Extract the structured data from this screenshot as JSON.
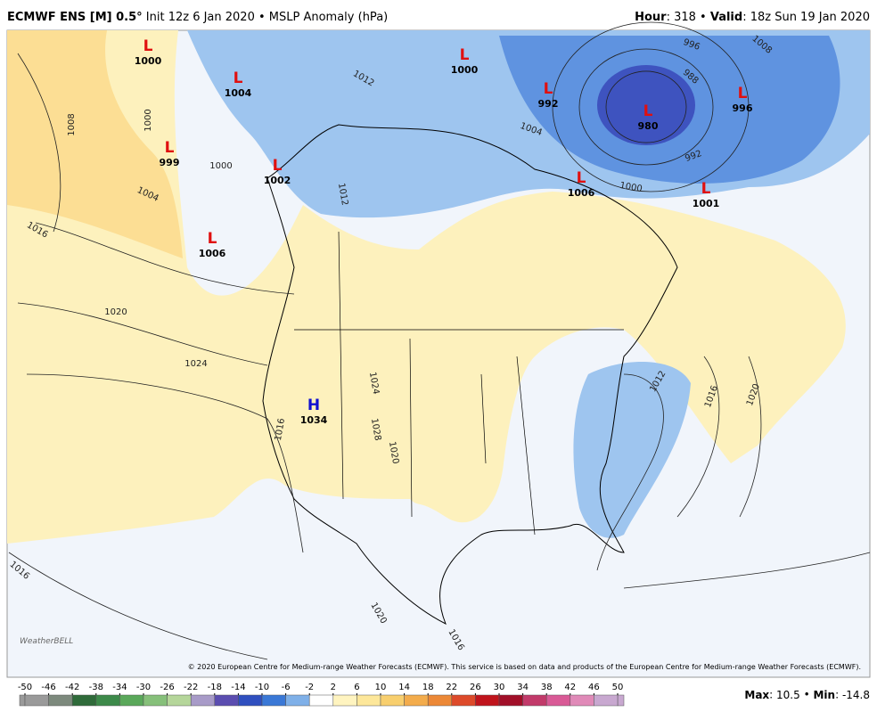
{
  "header": {
    "model": "ECMWF ENS [M] 0.5°",
    "subtitle": "Init 12z 6 Jan 2020 • MSLP Anomaly (hPa)",
    "hour_label": "Hour",
    "hour_text": ": 318 •",
    "valid_label": "Valid",
    "valid_text": ": 18z Sun 19 Jan 2020"
  },
  "centers": [
    {
      "label": "L",
      "value": 1000
    },
    {
      "label": "L",
      "value": 1004
    },
    {
      "label": "L",
      "value": 999
    },
    {
      "label": "L",
      "value": 1002
    },
    {
      "label": "L",
      "value": 1006
    },
    {
      "label": "L",
      "value": 1000
    },
    {
      "label": "H",
      "value": 1034
    },
    {
      "label": "L",
      "value": 992
    },
    {
      "label": "L",
      "value": 980
    },
    {
      "label": "L",
      "value": 996
    },
    {
      "label": "L",
      "value": 1006
    },
    {
      "label": "L",
      "value": 1001
    }
  ],
  "isobar_labels": [
    1008,
    1000,
    1004,
    1016,
    1020,
    1024,
    1012,
    1012,
    1024,
    1028,
    1020,
    1016,
    1016,
    1020,
    1016,
    1016,
    1020,
    1012,
    996,
    1008,
    988,
    992,
    1000,
    1004,
    1000
  ],
  "colorbar": {
    "ticks": [
      -50,
      -46,
      -42,
      -38,
      -34,
      -30,
      -26,
      -22,
      -18,
      -14,
      -10,
      -6,
      -2,
      2,
      6,
      10,
      14,
      18,
      22,
      26,
      30,
      34,
      38,
      42,
      46,
      50
    ],
    "colors": [
      "#9a9a9a",
      "#7d8a7d",
      "#2f6b3a",
      "#3d8a4a",
      "#5aa85a",
      "#86c07a",
      "#b5d69a",
      "#a89bc8",
      "#5b4db0",
      "#2f4fbf",
      "#3a78d6",
      "#7fb0e8",
      "#ffffff",
      "#fff4c0",
      "#fde79a",
      "#f8cf6e",
      "#f3ac4c",
      "#ec8836",
      "#dd4a2a",
      "#c0141c",
      "#a10f28",
      "#c23a6a",
      "#d95a96",
      "#e08ab8",
      "#c8a8d0"
    ]
  },
  "stats": {
    "max_label": "Max",
    "max": 10.5,
    "min_label": "Min",
    "min": -14.8
  },
  "copyright": "© 2020 European Centre for Medium-range Weather Forecasts (ECMWF). This service is based on data and products of the European Centre for Medium-range Weather Forecasts (ECMWF).",
  "logo": "WeatherBELL"
}
